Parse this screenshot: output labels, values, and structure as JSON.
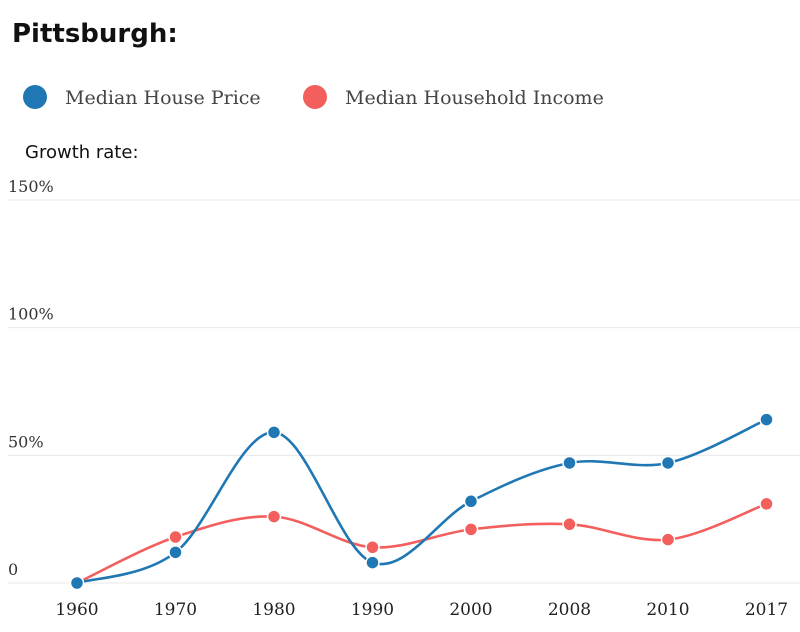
{
  "title": "Pittsburgh:",
  "subtitle": "Growth rate:",
  "colors": {
    "house": "#1f77b4",
    "income": "#f25f5c"
  },
  "chart_data": {
    "type": "line",
    "categories": [
      "1960",
      "1970",
      "1980",
      "1990",
      "2000",
      "2008",
      "2010",
      "2017"
    ],
    "ylim": [
      0,
      150
    ],
    "yticks": [
      {
        "value": 0,
        "label": "0"
      },
      {
        "value": 50,
        "label": "50%"
      },
      {
        "value": 100,
        "label": "100%"
      },
      {
        "value": 150,
        "label": "150%"
      }
    ],
    "legend_position": "top-left",
    "grid": true,
    "series": [
      {
        "name": "Median House Price",
        "color": "#1f77b4",
        "values": [
          0,
          12,
          59,
          8,
          32,
          47,
          47,
          64
        ]
      },
      {
        "name": "Median Household Income",
        "color": "#f25f5c",
        "values": [
          0,
          18,
          26,
          14,
          21,
          23,
          17,
          31
        ]
      }
    ]
  }
}
